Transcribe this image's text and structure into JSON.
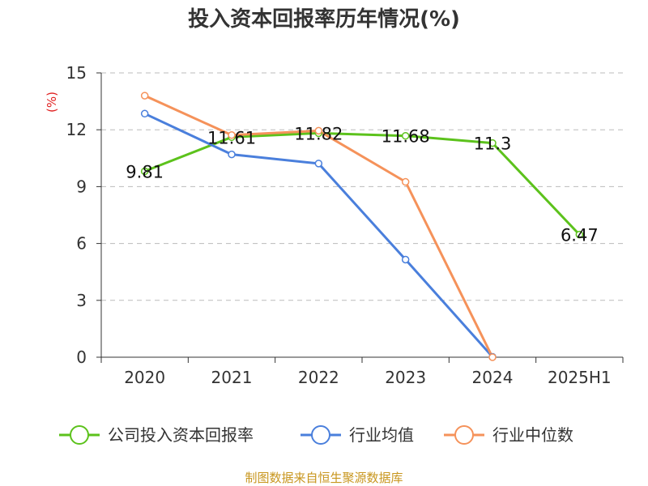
{
  "chart_data": {
    "type": "line",
    "title": "投入资本回报率历年情况(%)",
    "unit_label": "(%)",
    "categories": [
      "2020",
      "2021",
      "2022",
      "2023",
      "2024",
      "2025H1"
    ],
    "ylim": [
      0,
      15
    ],
    "yticks": [
      "0",
      "3",
      "6",
      "9",
      "12",
      "15"
    ],
    "grid": true,
    "legend_position": "bottom",
    "series": [
      {
        "name": "公司投入资本回报率",
        "color": "#5cc21c",
        "values": [
          9.81,
          11.61,
          11.82,
          11.68,
          11.3,
          6.47
        ],
        "labels": [
          "9.81",
          "11.61",
          "11.82",
          "11.68",
          "11.3",
          "6.47"
        ]
      },
      {
        "name": "行业均值",
        "color": "#4a7fdc",
        "values": [
          12.85,
          10.7,
          10.22,
          5.15,
          0.02,
          null
        ]
      },
      {
        "name": "行业中位数",
        "color": "#f5925a",
        "values": [
          13.8,
          11.72,
          11.95,
          9.25,
          0.0,
          null
        ]
      }
    ]
  },
  "source_text": "制图数据来自恒生聚源数据库"
}
